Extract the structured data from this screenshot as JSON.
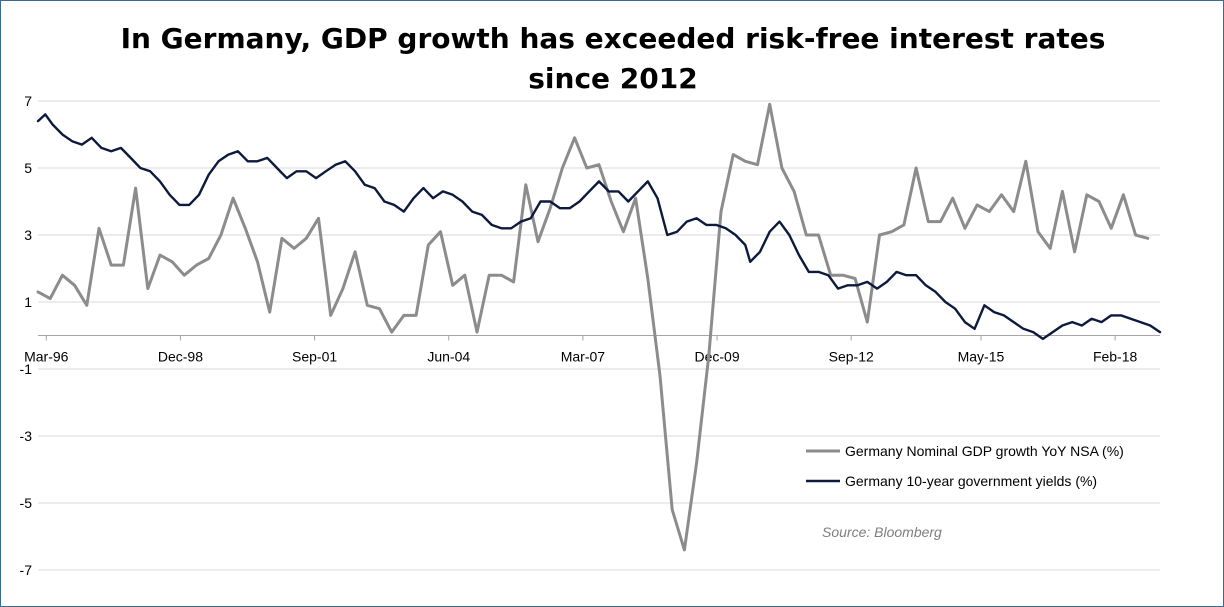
{
  "chart_data": {
    "type": "line",
    "title_line1": "In Germany, GDP growth has exceeded risk-free interest rates",
    "title_line2": "since 2012",
    "xlabel": "",
    "ylabel": "",
    "ylim": [
      -7,
      7
    ],
    "y_ticks": [
      7,
      5,
      3,
      1,
      -1,
      -3,
      -5,
      -7
    ],
    "x_range": [
      1996.0,
      2019.0
    ],
    "x_tick_labels": [
      {
        "label": "Mar-96",
        "x": 1996.17
      },
      {
        "label": "Dec-98",
        "x": 1998.92
      },
      {
        "label": "Sep-01",
        "x": 2001.67
      },
      {
        "label": "Jun-04",
        "x": 2004.42
      },
      {
        "label": "Mar-07",
        "x": 2007.17
      },
      {
        "label": "Dec-09",
        "x": 2009.92
      },
      {
        "label": "Sep-12",
        "x": 2012.67
      },
      {
        "label": "May-15",
        "x": 2015.33
      },
      {
        "label": "Feb-18",
        "x": 2018.08
      }
    ],
    "grid": "horizontal",
    "legend_position": "bottom-right",
    "source": "Source: Bloomberg",
    "series": [
      {
        "name": "Germany Nominal GDP growth YoY NSA (%)",
        "color": "#8c8c8c",
        "points": [
          [
            1996.0,
            1.3
          ],
          [
            1996.25,
            1.1
          ],
          [
            1996.5,
            1.8
          ],
          [
            1996.75,
            1.5
          ],
          [
            1997.0,
            0.9
          ],
          [
            1997.25,
            3.2
          ],
          [
            1997.5,
            2.1
          ],
          [
            1997.75,
            2.1
          ],
          [
            1998.0,
            4.4
          ],
          [
            1998.25,
            1.4
          ],
          [
            1998.5,
            2.4
          ],
          [
            1998.75,
            2.2
          ],
          [
            1999.0,
            1.8
          ],
          [
            1999.25,
            2.1
          ],
          [
            1999.5,
            2.3
          ],
          [
            1999.75,
            3.0
          ],
          [
            2000.0,
            4.1
          ],
          [
            2000.25,
            3.2
          ],
          [
            2000.5,
            2.2
          ],
          [
            2000.75,
            0.7
          ],
          [
            2001.0,
            2.9
          ],
          [
            2001.25,
            2.6
          ],
          [
            2001.5,
            2.9
          ],
          [
            2001.75,
            3.5
          ],
          [
            2002.0,
            0.6
          ],
          [
            2002.25,
            1.4
          ],
          [
            2002.5,
            2.5
          ],
          [
            2002.75,
            0.9
          ],
          [
            2003.0,
            0.8
          ],
          [
            2003.25,
            0.1
          ],
          [
            2003.5,
            0.6
          ],
          [
            2003.75,
            0.6
          ],
          [
            2004.0,
            2.7
          ],
          [
            2004.25,
            3.1
          ],
          [
            2004.5,
            1.5
          ],
          [
            2004.75,
            1.8
          ],
          [
            2005.0,
            0.1
          ],
          [
            2005.25,
            1.8
          ],
          [
            2005.5,
            1.8
          ],
          [
            2005.75,
            1.6
          ],
          [
            2006.0,
            4.5
          ],
          [
            2006.25,
            2.8
          ],
          [
            2006.5,
            3.8
          ],
          [
            2006.75,
            5.0
          ],
          [
            2007.0,
            5.9
          ],
          [
            2007.25,
            5.0
          ],
          [
            2007.5,
            5.1
          ],
          [
            2007.75,
            4.0
          ],
          [
            2008.0,
            3.1
          ],
          [
            2008.25,
            4.1
          ],
          [
            2008.5,
            1.7
          ],
          [
            2008.75,
            -1.2
          ],
          [
            2009.0,
            -5.2
          ],
          [
            2009.25,
            -6.4
          ],
          [
            2009.5,
            -3.8
          ],
          [
            2009.75,
            -0.6
          ],
          [
            2010.0,
            3.7
          ],
          [
            2010.25,
            5.4
          ],
          [
            2010.5,
            5.2
          ],
          [
            2010.75,
            5.1
          ],
          [
            2011.0,
            6.9
          ],
          [
            2011.25,
            5.0
          ],
          [
            2011.5,
            4.3
          ],
          [
            2011.75,
            3.0
          ],
          [
            2012.0,
            3.0
          ],
          [
            2012.25,
            1.8
          ],
          [
            2012.5,
            1.8
          ],
          [
            2012.75,
            1.7
          ],
          [
            2013.0,
            0.4
          ],
          [
            2013.25,
            3.0
          ],
          [
            2013.5,
            3.1
          ],
          [
            2013.75,
            3.3
          ],
          [
            2014.0,
            5.0
          ],
          [
            2014.25,
            3.4
          ],
          [
            2014.5,
            3.4
          ],
          [
            2014.75,
            4.1
          ],
          [
            2015.0,
            3.2
          ],
          [
            2015.25,
            3.9
          ],
          [
            2015.5,
            3.7
          ],
          [
            2015.75,
            4.2
          ],
          [
            2016.0,
            3.7
          ],
          [
            2016.25,
            5.2
          ],
          [
            2016.5,
            3.1
          ],
          [
            2016.75,
            2.6
          ],
          [
            2017.0,
            4.3
          ],
          [
            2017.25,
            2.5
          ],
          [
            2017.5,
            4.2
          ],
          [
            2017.75,
            4.0
          ],
          [
            2018.0,
            3.2
          ],
          [
            2018.25,
            4.2
          ],
          [
            2018.5,
            3.0
          ],
          [
            2018.75,
            2.9
          ]
        ]
      },
      {
        "name": "Germany 10-year government yields (%)",
        "color": "#0d1a3d",
        "points": [
          [
            1996.0,
            6.4
          ],
          [
            1996.15,
            6.6
          ],
          [
            1996.3,
            6.3
          ],
          [
            1996.5,
            6.0
          ],
          [
            1996.7,
            5.8
          ],
          [
            1996.9,
            5.7
          ],
          [
            1997.1,
            5.9
          ],
          [
            1997.3,
            5.6
          ],
          [
            1997.5,
            5.5
          ],
          [
            1997.7,
            5.6
          ],
          [
            1997.9,
            5.3
          ],
          [
            1998.1,
            5.0
          ],
          [
            1998.3,
            4.9
          ],
          [
            1998.5,
            4.6
          ],
          [
            1998.7,
            4.2
          ],
          [
            1998.9,
            3.9
          ],
          [
            1999.1,
            3.9
          ],
          [
            1999.3,
            4.2
          ],
          [
            1999.5,
            4.8
          ],
          [
            1999.7,
            5.2
          ],
          [
            1999.9,
            5.4
          ],
          [
            2000.1,
            5.5
          ],
          [
            2000.3,
            5.2
          ],
          [
            2000.5,
            5.2
          ],
          [
            2000.7,
            5.3
          ],
          [
            2000.9,
            5.0
          ],
          [
            2001.1,
            4.7
          ],
          [
            2001.3,
            4.9
          ],
          [
            2001.5,
            4.9
          ],
          [
            2001.7,
            4.7
          ],
          [
            2001.9,
            4.9
          ],
          [
            2002.1,
            5.1
          ],
          [
            2002.3,
            5.2
          ],
          [
            2002.5,
            4.9
          ],
          [
            2002.7,
            4.5
          ],
          [
            2002.9,
            4.4
          ],
          [
            2003.1,
            4.0
          ],
          [
            2003.3,
            3.9
          ],
          [
            2003.5,
            3.7
          ],
          [
            2003.7,
            4.1
          ],
          [
            2003.9,
            4.4
          ],
          [
            2004.1,
            4.1
          ],
          [
            2004.3,
            4.3
          ],
          [
            2004.5,
            4.2
          ],
          [
            2004.7,
            4.0
          ],
          [
            2004.9,
            3.7
          ],
          [
            2005.1,
            3.6
          ],
          [
            2005.3,
            3.3
          ],
          [
            2005.5,
            3.2
          ],
          [
            2005.7,
            3.2
          ],
          [
            2005.9,
            3.4
          ],
          [
            2006.1,
            3.5
          ],
          [
            2006.3,
            4.0
          ],
          [
            2006.5,
            4.0
          ],
          [
            2006.7,
            3.8
          ],
          [
            2006.9,
            3.8
          ],
          [
            2007.1,
            4.0
          ],
          [
            2007.3,
            4.3
          ],
          [
            2007.5,
            4.6
          ],
          [
            2007.7,
            4.3
          ],
          [
            2007.9,
            4.3
          ],
          [
            2008.1,
            4.0
          ],
          [
            2008.3,
            4.3
          ],
          [
            2008.5,
            4.6
          ],
          [
            2008.7,
            4.1
          ],
          [
            2008.9,
            3.0
          ],
          [
            2009.1,
            3.1
          ],
          [
            2009.3,
            3.4
          ],
          [
            2009.5,
            3.5
          ],
          [
            2009.7,
            3.3
          ],
          [
            2009.9,
            3.3
          ],
          [
            2010.1,
            3.2
          ],
          [
            2010.3,
            3.0
          ],
          [
            2010.5,
            2.7
          ],
          [
            2010.6,
            2.2
          ],
          [
            2010.8,
            2.5
          ],
          [
            2011.0,
            3.1
          ],
          [
            2011.2,
            3.4
          ],
          [
            2011.4,
            3.0
          ],
          [
            2011.6,
            2.4
          ],
          [
            2011.8,
            1.9
          ],
          [
            2012.0,
            1.9
          ],
          [
            2012.2,
            1.8
          ],
          [
            2012.4,
            1.4
          ],
          [
            2012.6,
            1.5
          ],
          [
            2012.8,
            1.5
          ],
          [
            2013.0,
            1.6
          ],
          [
            2013.2,
            1.4
          ],
          [
            2013.4,
            1.6
          ],
          [
            2013.6,
            1.9
          ],
          [
            2013.8,
            1.8
          ],
          [
            2014.0,
            1.8
          ],
          [
            2014.2,
            1.5
          ],
          [
            2014.4,
            1.3
          ],
          [
            2014.6,
            1.0
          ],
          [
            2014.8,
            0.8
          ],
          [
            2015.0,
            0.4
          ],
          [
            2015.2,
            0.2
          ],
          [
            2015.4,
            0.9
          ],
          [
            2015.6,
            0.7
          ],
          [
            2015.8,
            0.6
          ],
          [
            2016.0,
            0.4
          ],
          [
            2016.2,
            0.2
          ],
          [
            2016.4,
            0.1
          ],
          [
            2016.6,
            -0.1
          ],
          [
            2016.8,
            0.1
          ],
          [
            2017.0,
            0.3
          ],
          [
            2017.2,
            0.4
          ],
          [
            2017.4,
            0.3
          ],
          [
            2017.6,
            0.5
          ],
          [
            2017.8,
            0.4
          ],
          [
            2018.0,
            0.6
          ],
          [
            2018.2,
            0.6
          ],
          [
            2018.4,
            0.5
          ],
          [
            2018.6,
            0.4
          ],
          [
            2018.8,
            0.3
          ],
          [
            2019.0,
            0.1
          ]
        ]
      }
    ]
  }
}
